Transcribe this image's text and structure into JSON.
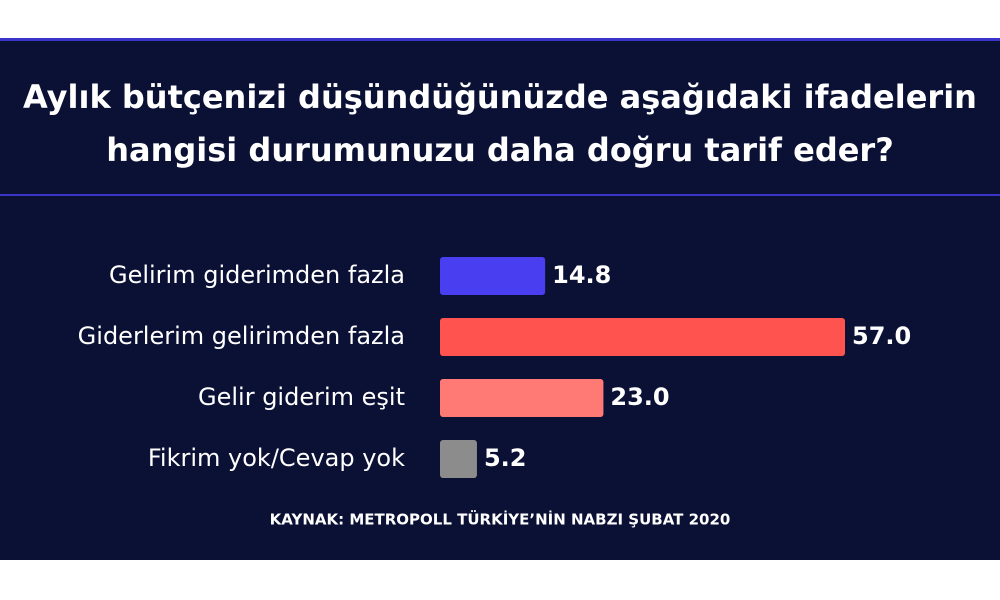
{
  "chart_data": {
    "type": "bar",
    "orientation": "horizontal",
    "title": "Aylık bütçenizi düşündüğünüzde aşağıdaki ifadelerin hangisi durumunuzu daha doğru tarif eder?",
    "categories": [
      "Gelirim giderimden fazla",
      "Giderlerim gelirimden fazla",
      "Gelir giderim eşit",
      "Fikrim yok/Cevap yok"
    ],
    "values": [
      14.8,
      57,
      23,
      5.2
    ],
    "value_labels": [
      "14.8",
      "57.0",
      "23.0",
      "5.2"
    ],
    "colors": [
      "#4a3ff0",
      "#ff5350",
      "#ff7a75",
      "#8c8c8c"
    ],
    "source": "KAYNAK: METROPOLL TÜRKİYE’NİN NABZI ŞUBAT 2020"
  }
}
